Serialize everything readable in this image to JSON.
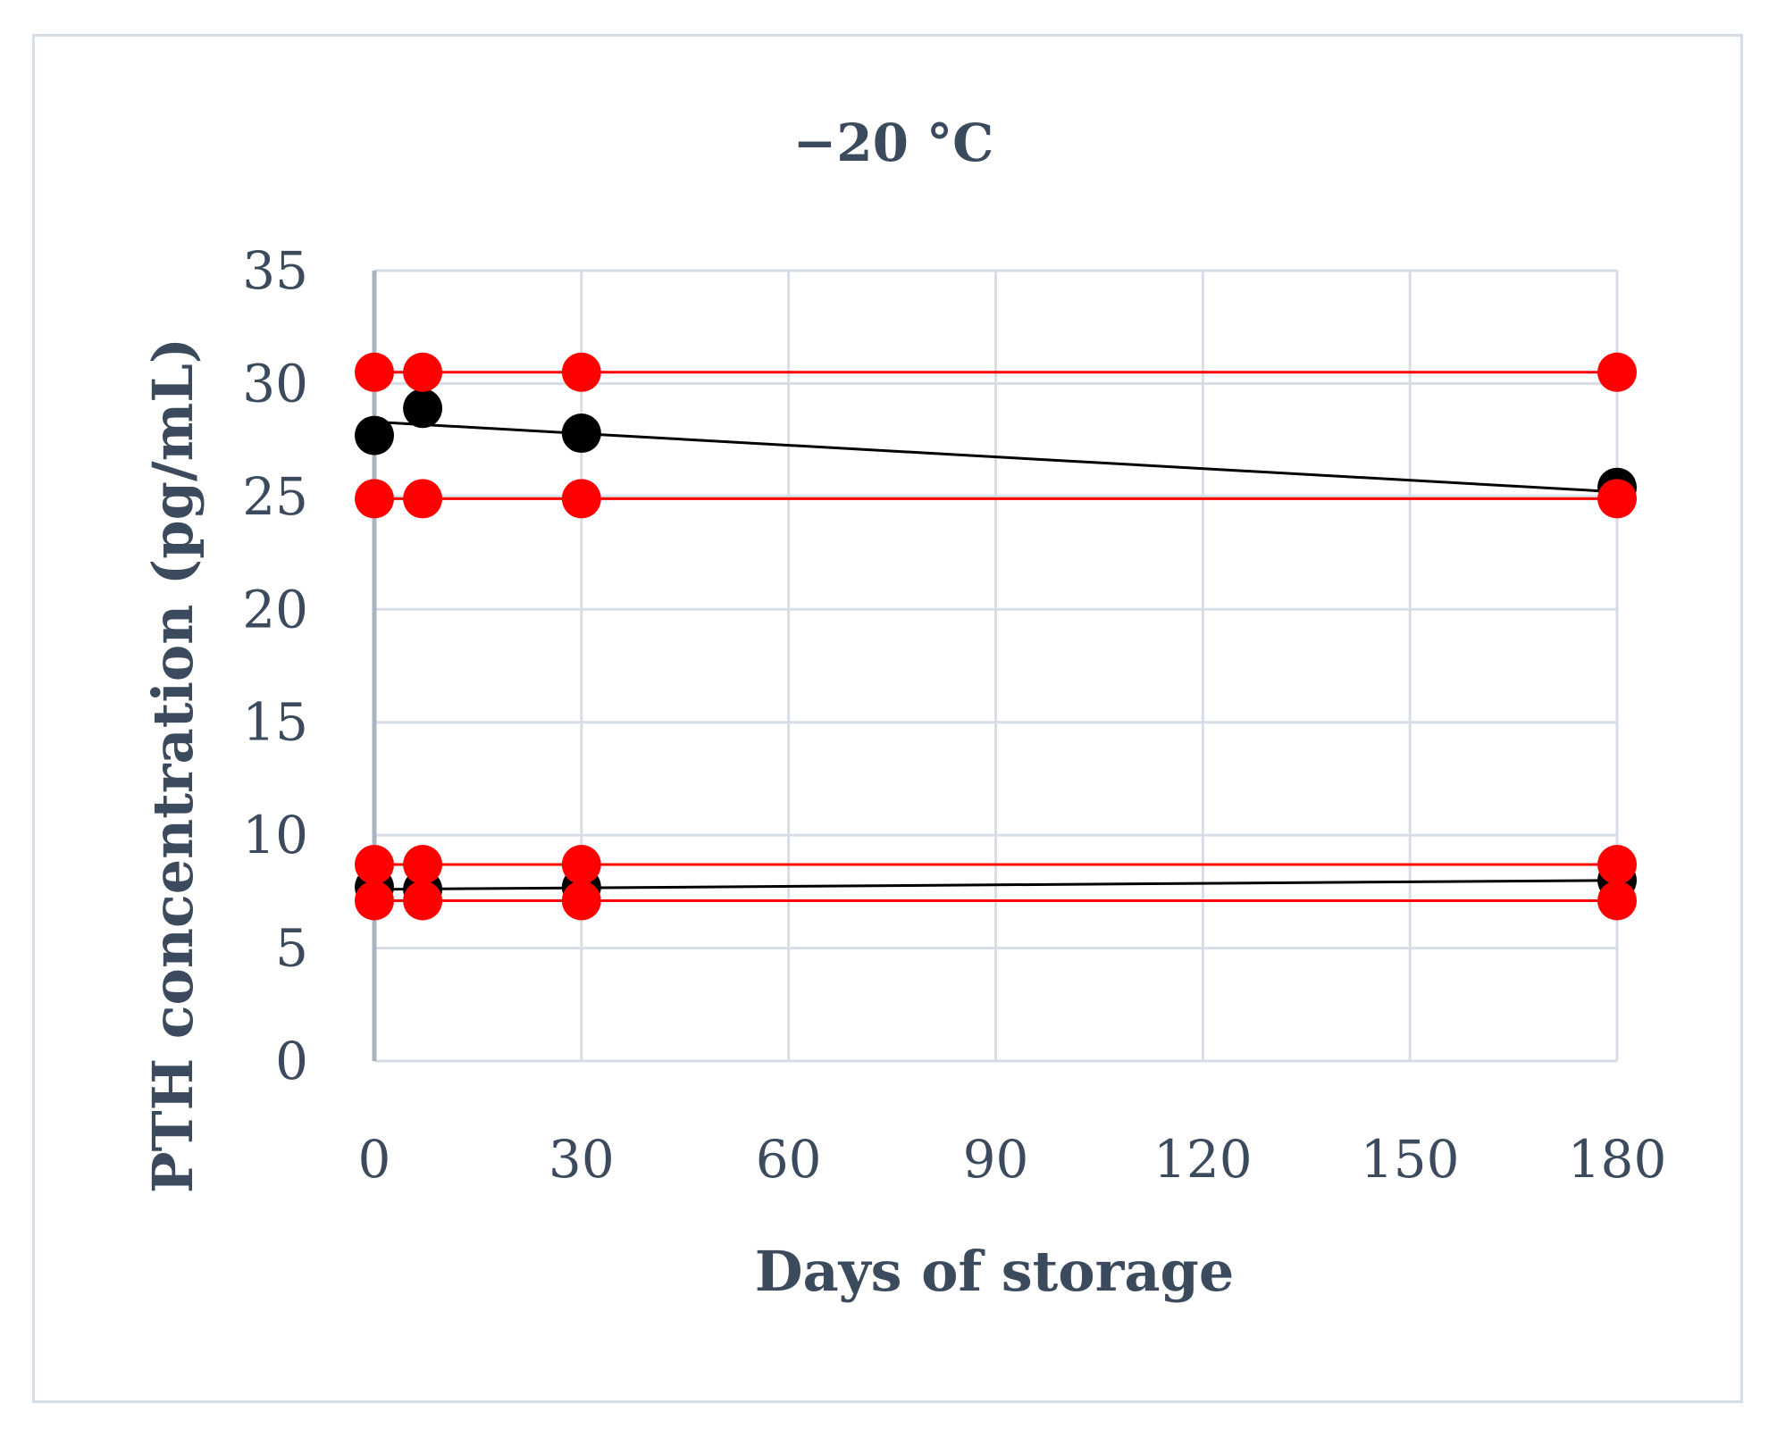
{
  "chart_data": {
    "type": "scatter",
    "title": "−20 °C",
    "xlabel": "Days of storage",
    "ylabel": "PTH concentration (pg/mL)",
    "xlim": [
      0,
      180
    ],
    "ylim": [
      0,
      35
    ],
    "xticks": [
      "0",
      "30",
      "60",
      "90",
      "120",
      "150",
      "180"
    ],
    "yticks": [
      "0",
      "5",
      "10",
      "15",
      "20",
      "25",
      "30",
      "35"
    ],
    "grid": true,
    "legend": "none",
    "colors": {
      "measured": "#000000",
      "limits": "#ff0000",
      "grid": "#d6dde6",
      "text": "#3b4a5c"
    },
    "series": [
      {
        "color": "#ff0000",
        "role": "upper-limit-high",
        "x": [
          0,
          7,
          30,
          180
        ],
        "y": [
          30.5,
          30.5,
          30.5,
          30.5
        ]
      },
      {
        "color": "#000000",
        "role": "measured-high",
        "x": [
          0,
          7,
          30,
          180
        ],
        "y": [
          27.7,
          28.9,
          27.8,
          25.4
        ],
        "trend": [
          28.3,
          25.2
        ]
      },
      {
        "color": "#ff0000",
        "role": "lower-limit-high",
        "x": [
          0,
          7,
          30,
          180
        ],
        "y": [
          24.9,
          24.9,
          24.9,
          24.9
        ]
      },
      {
        "color": "#ff0000",
        "role": "upper-limit-low",
        "x": [
          0,
          7,
          30,
          180
        ],
        "y": [
          8.7,
          8.7,
          8.7,
          8.7
        ]
      },
      {
        "color": "#000000",
        "role": "measured-low",
        "x": [
          0,
          7,
          30,
          180
        ],
        "y": [
          7.7,
          7.6,
          7.7,
          8.0
        ],
        "trend": [
          7.6,
          8.0
        ]
      },
      {
        "color": "#ff0000",
        "role": "lower-limit-low",
        "x": [
          0,
          7,
          30,
          180
        ],
        "y": [
          7.1,
          7.1,
          7.1,
          7.1
        ]
      }
    ]
  }
}
